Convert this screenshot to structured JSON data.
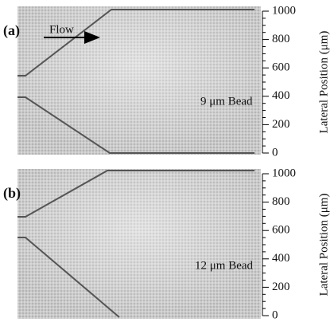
{
  "panels": [
    {
      "label": "(a)",
      "flow_label": "Flow",
      "annotation": "9 μm Bead",
      "axis_label": "Lateral Position (μm)",
      "ticks": [
        1000,
        800,
        600,
        400,
        200,
        0
      ]
    },
    {
      "label": "(b)",
      "annotation": "12 μm Bead",
      "axis_label": "Lateral Position (μm)",
      "ticks": [
        1000,
        800,
        600,
        400,
        200,
        0
      ]
    }
  ]
}
